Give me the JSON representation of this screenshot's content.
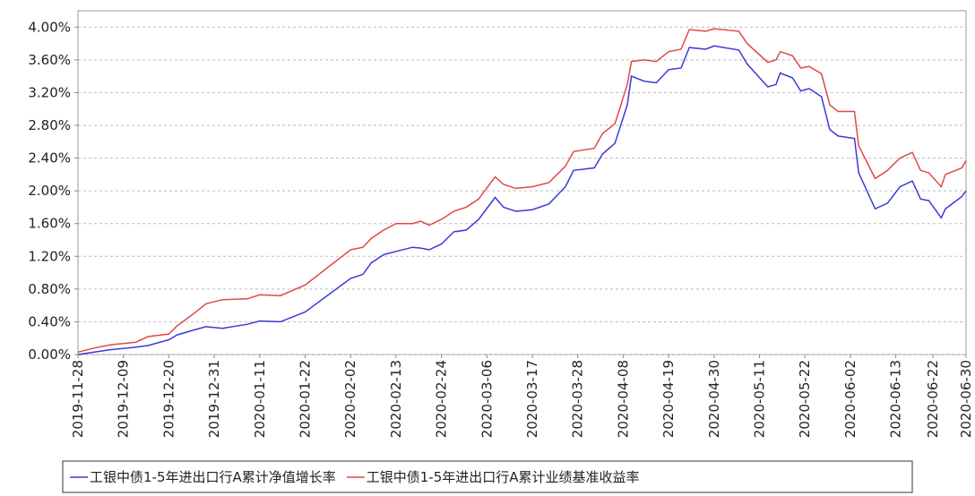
{
  "chart_data": {
    "type": "line",
    "x": [
      "2019-11-28",
      "2019-12-02",
      "2019-12-06",
      "2019-12-12",
      "2019-12-15",
      "2019-12-20",
      "2019-12-22",
      "2019-12-26",
      "2019-12-29",
      "2020-01-02",
      "2020-01-08",
      "2020-01-11",
      "2020-01-16",
      "2020-01-22",
      "2020-02-02",
      "2020-02-05",
      "2020-02-07",
      "2020-02-10",
      "2020-02-13",
      "2020-02-17",
      "2020-02-19",
      "2020-02-21",
      "2020-02-24",
      "2020-02-27",
      "2020-03-01",
      "2020-03-04",
      "2020-03-08",
      "2020-03-10",
      "2020-03-13",
      "2020-03-17",
      "2020-03-21",
      "2020-03-25",
      "2020-03-27",
      "2020-04-01",
      "2020-04-03",
      "2020-04-06",
      "2020-04-09",
      "2020-04-10",
      "2020-04-13",
      "2020-04-16",
      "2020-04-19",
      "2020-04-22",
      "2020-04-24",
      "2020-04-28",
      "2020-04-30",
      "2020-05-06",
      "2020-05-08",
      "2020-05-13",
      "2020-05-15",
      "2020-05-16",
      "2020-05-19",
      "2020-05-21",
      "2020-05-23",
      "2020-05-26",
      "2020-05-28",
      "2020-05-30",
      "2020-06-03",
      "2020-06-04",
      "2020-06-08",
      "2020-06-11",
      "2020-06-14",
      "2020-06-17",
      "2020-06-19",
      "2020-06-21",
      "2020-06-24",
      "2020-06-25",
      "2020-06-29",
      "2020-06-30"
    ],
    "series": [
      {
        "name": "工银中债1-5年进出口行A累计净值增长率",
        "color": "#3a3ad8",
        "values": [
          0.0,
          0.03,
          0.06,
          0.09,
          0.11,
          0.18,
          0.24,
          0.3,
          0.34,
          0.32,
          0.37,
          0.41,
          0.4,
          0.52,
          0.93,
          0.98,
          1.12,
          1.22,
          1.26,
          1.31,
          1.3,
          1.28,
          1.35,
          1.5,
          1.52,
          1.65,
          1.92,
          1.8,
          1.75,
          1.77,
          1.84,
          2.05,
          2.25,
          2.28,
          2.45,
          2.58,
          3.05,
          3.4,
          3.34,
          3.32,
          3.48,
          3.5,
          3.75,
          3.73,
          3.77,
          3.72,
          3.55,
          3.27,
          3.3,
          3.44,
          3.38,
          3.22,
          3.25,
          3.15,
          2.75,
          2.67,
          2.64,
          2.22,
          1.78,
          1.85,
          2.05,
          2.12,
          1.9,
          1.88,
          1.67,
          1.78,
          1.93,
          2.0
        ]
      },
      {
        "name": "工银中债1-5年进出口行A累计业绩基准收益率",
        "color": "#e04848",
        "values": [
          0.03,
          0.08,
          0.12,
          0.15,
          0.22,
          0.25,
          0.35,
          0.5,
          0.62,
          0.67,
          0.68,
          0.73,
          0.72,
          0.85,
          1.28,
          1.31,
          1.42,
          1.52,
          1.6,
          1.6,
          1.63,
          1.58,
          1.65,
          1.75,
          1.8,
          1.9,
          2.17,
          2.08,
          2.03,
          2.05,
          2.1,
          2.3,
          2.48,
          2.52,
          2.7,
          2.82,
          3.3,
          3.58,
          3.6,
          3.58,
          3.7,
          3.73,
          3.97,
          3.95,
          3.98,
          3.95,
          3.8,
          3.57,
          3.6,
          3.7,
          3.65,
          3.5,
          3.52,
          3.43,
          3.05,
          2.97,
          2.97,
          2.55,
          2.15,
          2.25,
          2.4,
          2.47,
          2.25,
          2.22,
          2.05,
          2.2,
          2.28,
          2.37
        ]
      }
    ],
    "xlim": [
      "2019-11-28",
      "2020-06-30"
    ],
    "xticks": [
      "2019-11-28",
      "2019-12-09",
      "2019-12-20",
      "2019-12-31",
      "2020-01-11",
      "2020-01-22",
      "2020-02-02",
      "2020-02-13",
      "2020-02-24",
      "2020-03-06",
      "2020-03-17",
      "2020-03-28",
      "2020-04-08",
      "2020-04-19",
      "2020-04-30",
      "2020-05-11",
      "2020-05-22",
      "2020-06-02",
      "2020-06-13",
      "2020-06-22",
      "2020-06-30"
    ],
    "ylim": [
      0,
      4.2
    ],
    "yticks": [
      {
        "value": 0,
        "label": "0.00%"
      },
      {
        "value": 0.4,
        "label": "0.40%"
      },
      {
        "value": 0.8,
        "label": "0.80%"
      },
      {
        "value": 1.2,
        "label": "1.20%"
      },
      {
        "value": 1.6,
        "label": "1.60%"
      },
      {
        "value": 2.0,
        "label": "2.00%"
      },
      {
        "value": 2.4,
        "label": "2.40%"
      },
      {
        "value": 2.8,
        "label": "2.80%"
      },
      {
        "value": 3.2,
        "label": "3.20%"
      },
      {
        "value": 3.6,
        "label": "3.60%"
      },
      {
        "value": 4.0,
        "label": "4.00%"
      }
    ],
    "grid": true,
    "legend": "bottom"
  }
}
